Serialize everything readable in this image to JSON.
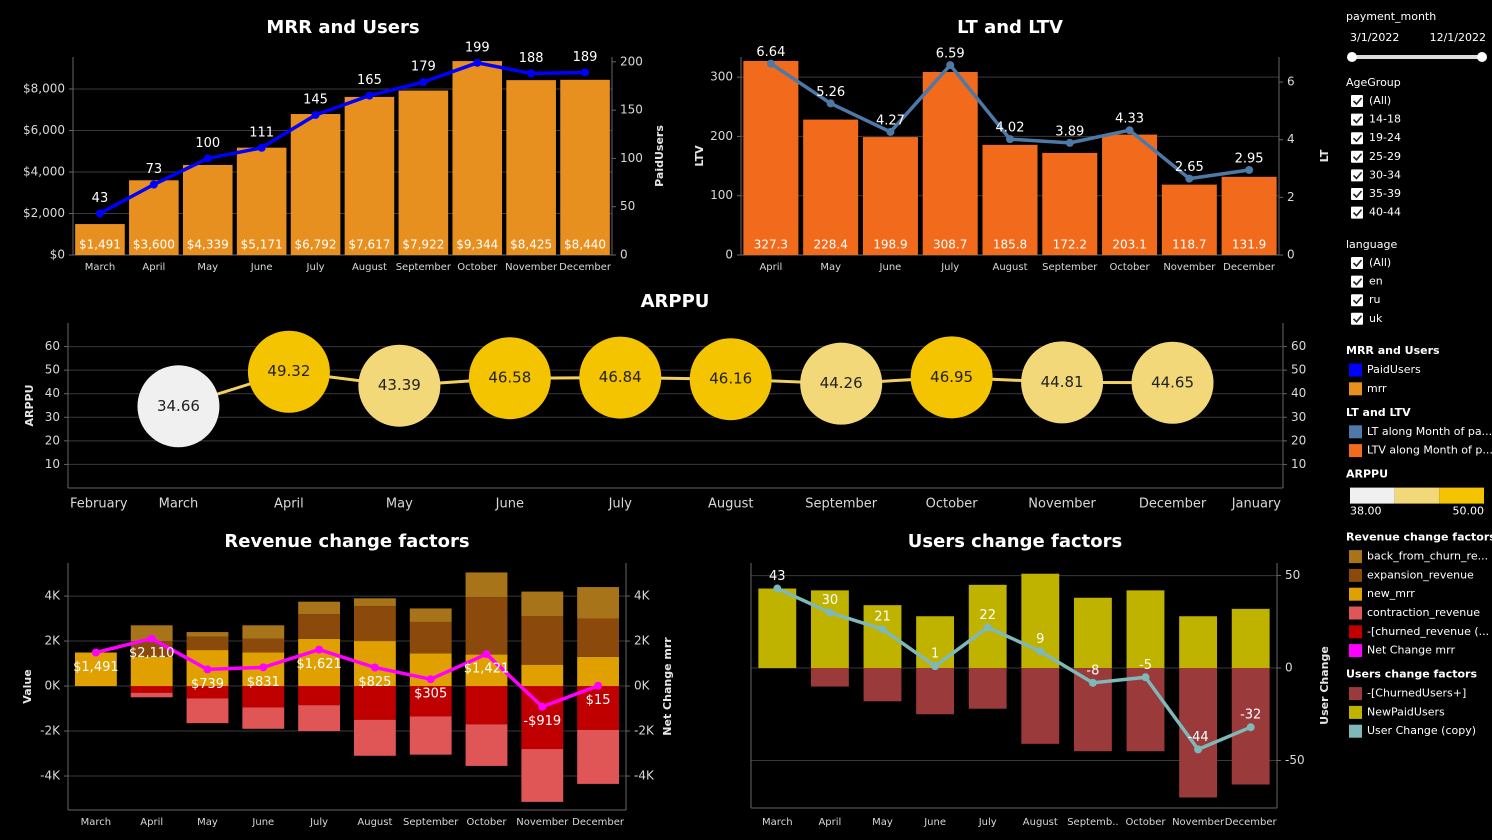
{
  "chart_data": [
    {
      "type": "bar_line",
      "title": "MRR and Users",
      "categories": [
        "March",
        "April",
        "May",
        "June",
        "July",
        "August",
        "September",
        "October",
        "November",
        "December"
      ],
      "series": [
        {
          "name": "PaidUsers",
          "kind": "line",
          "axis": "y2",
          "color": "#0000ff",
          "values": [
            43,
            73,
            100,
            111,
            145,
            165,
            179,
            199,
            188,
            189
          ]
        },
        {
          "name": "mrr",
          "kind": "bar",
          "color": "#e8901f",
          "values": [
            1491,
            3600,
            4339,
            5171,
            6792,
            7617,
            7922,
            9344,
            8425,
            8440
          ],
          "value_labels": [
            "$1,491",
            "$3,600",
            "$4,339",
            "$5,171",
            "$6,792",
            "$7,617",
            "$7,922",
            "$9,344",
            "$8,425",
            "$8,440"
          ]
        }
      ],
      "ylim": [
        0,
        9540
      ],
      "yticks": [
        {
          "value": 0,
          "label": "$0"
        },
        {
          "value": 2000,
          "label": "$2,000"
        },
        {
          "value": 4000,
          "label": "$4,000"
        },
        {
          "value": 6000,
          "label": "$6,000"
        },
        {
          "value": 8000,
          "label": "$8,000"
        }
      ],
      "y2lim": [
        0,
        205
      ],
      "y2ticks": [
        0,
        50,
        100,
        150,
        200
      ],
      "y2label": "PaidUsers",
      "grid": true
    },
    {
      "type": "bar_line",
      "title": "LT and LTV",
      "categories": [
        "April",
        "May",
        "June",
        "July",
        "August",
        "September",
        "October",
        "November",
        "December"
      ],
      "series": [
        {
          "name": "LT along Month of pa...",
          "kind": "line",
          "axis": "y2",
          "color": "#4e79a7",
          "values": [
            6.64,
            5.26,
            4.27,
            6.59,
            4.02,
            3.89,
            4.33,
            2.65,
            2.95
          ]
        },
        {
          "name": "LTV along Month of p...",
          "kind": "bar",
          "color": "#f26b1d",
          "values": [
            327.3,
            228.4,
            198.9,
            308.7,
            185.8,
            172.2,
            203.1,
            118.7,
            131.9
          ]
        }
      ],
      "ylim": [
        0,
        334
      ],
      "yticks": [
        0,
        100,
        200,
        300
      ],
      "ylabel": "LTV",
      "y2lim": [
        0,
        6.87
      ],
      "y2ticks": [
        0,
        2,
        4,
        6
      ],
      "y2label": "LT",
      "grid": true
    },
    {
      "type": "bubble",
      "title": "ARPPU",
      "categories": [
        "February",
        "March",
        "April",
        "May",
        "June",
        "July",
        "August",
        "September",
        "October",
        "November",
        "December",
        "January"
      ],
      "values": [
        null,
        34.66,
        49.32,
        43.39,
        46.58,
        46.84,
        46.16,
        44.26,
        46.95,
        44.81,
        44.65,
        null
      ],
      "line_color": "#f2d060",
      "color_scale": {
        "colors": [
          "#f0f0f0",
          "#f2d878",
          "#f5c400"
        ],
        "ticks": [
          {
            "value": 38,
            "label": "38.00"
          },
          {
            "value": 50,
            "label": "50.00"
          }
        ]
      },
      "ylim": [
        0,
        70
      ],
      "yticks": [
        10,
        20,
        30,
        40,
        50,
        60
      ],
      "ylabel": "ARPPU",
      "mirror_yaxis": true,
      "grid": true
    },
    {
      "type": "stacked_bar_line",
      "title": "Revenue change factors",
      "categories": [
        "March",
        "April",
        "May",
        "June",
        "July",
        "August",
        "September",
        "October",
        "November",
        "December"
      ],
      "series": [
        {
          "name": "back_from_churn_re...",
          "kind": "bar",
          "color": "#a8741a",
          "values": [
            0,
            700,
            200,
            600,
            550,
            350,
            600,
            1100,
            1100,
            1400
          ]
        },
        {
          "name": "expansion_revenue",
          "kind": "bar",
          "color": "#8b4a0c",
          "values": [
            0,
            700,
            600,
            600,
            1100,
            1550,
            1400,
            2550,
            2150,
            1700
          ]
        },
        {
          "name": "new_mrr",
          "kind": "bar",
          "color": "#e0a100",
          "values": [
            1491,
            1300,
            1600,
            1500,
            2100,
            2000,
            1450,
            1400,
            950,
            1300
          ]
        },
        {
          "name": "contraction_revenue",
          "kind": "bar",
          "color": "#e05555",
          "values": [
            0,
            -200,
            -1100,
            -950,
            -1150,
            -1600,
            -1700,
            -1850,
            -2350,
            -2400
          ]
        },
        {
          "name": "-[churned_revenue (...",
          "kind": "bar",
          "color": "#c00000",
          "values": [
            0,
            -300,
            -550,
            -950,
            -850,
            -1500,
            -1350,
            -1700,
            -2800,
            -1950
          ]
        },
        {
          "name": "Net Change mrr",
          "kind": "line",
          "axis": "y2",
          "color": "#ff00ff",
          "values": [
            1491,
            2110,
            739,
            831,
            1621,
            825,
            305,
            1421,
            -919,
            15
          ],
          "value_labels": [
            "$1,491",
            "$2,110",
            "$739",
            "$831",
            "$1,621",
            "$825",
            "$305",
            "$1,421",
            "-$919",
            "$15"
          ]
        }
      ],
      "ylim": [
        -5510,
        5470
      ],
      "yticks": [
        {
          "value": -4000,
          "label": "-4K"
        },
        {
          "value": -2000,
          "label": "-2K"
        },
        {
          "value": 0,
          "label": "0K"
        },
        {
          "value": 2000,
          "label": "2K"
        },
        {
          "value": 4000,
          "label": "4K"
        }
      ],
      "ylabel": "Value",
      "y2lim": [
        -5510,
        5470
      ],
      "y2ticks": [
        {
          "value": -4000,
          "label": "-4K"
        },
        {
          "value": -2000,
          "label": "-2K"
        },
        {
          "value": 0,
          "label": "0K"
        },
        {
          "value": 2000,
          "label": "2K"
        },
        {
          "value": 4000,
          "label": "4K"
        }
      ],
      "y2label": "Net Change mrr",
      "grid": true
    },
    {
      "type": "stacked_bar_line",
      "title": "Users change factors",
      "categories": [
        "March",
        "April",
        "May",
        "June",
        "July",
        "August",
        "Septemb..",
        "October",
        "November",
        "December"
      ],
      "series": [
        {
          "name": "-[ChurnedUsers+]",
          "kind": "bar",
          "axis": "y2",
          "color": "#9b3a3a",
          "values": [
            0,
            -10,
            -18,
            -25,
            -22,
            -41,
            -45,
            -45,
            -70,
            -63
          ]
        },
        {
          "name": "NewPaidUsers",
          "kind": "bar",
          "axis": "y2",
          "color": "#bfb300",
          "values": [
            43,
            42,
            34,
            28,
            45,
            51,
            38,
            42,
            28,
            32
          ]
        },
        {
          "name": "User Change (copy)",
          "kind": "line",
          "axis": "y2",
          "color": "#7fb8b8",
          "values": [
            43,
            30,
            21,
            1,
            22,
            9,
            -8,
            -5,
            -44,
            -32
          ]
        }
      ],
      "y2lim": [
        -75.7,
        56.8
      ],
      "y2ticks": [
        -50,
        0,
        50
      ],
      "y2label": "User Change",
      "grid": true
    }
  ],
  "filters": {
    "payment_month": {
      "label": "payment_month",
      "start": "3/1/2022",
      "end": "12/1/2022"
    },
    "age_group": {
      "label": "AgeGroup",
      "options": [
        "(All)",
        "14-18",
        "19-24",
        "25-29",
        "30-34",
        "35-39",
        "40-44"
      ]
    },
    "language": {
      "label": "language",
      "options": [
        "(All)",
        "en",
        "ru",
        "uk"
      ]
    }
  }
}
